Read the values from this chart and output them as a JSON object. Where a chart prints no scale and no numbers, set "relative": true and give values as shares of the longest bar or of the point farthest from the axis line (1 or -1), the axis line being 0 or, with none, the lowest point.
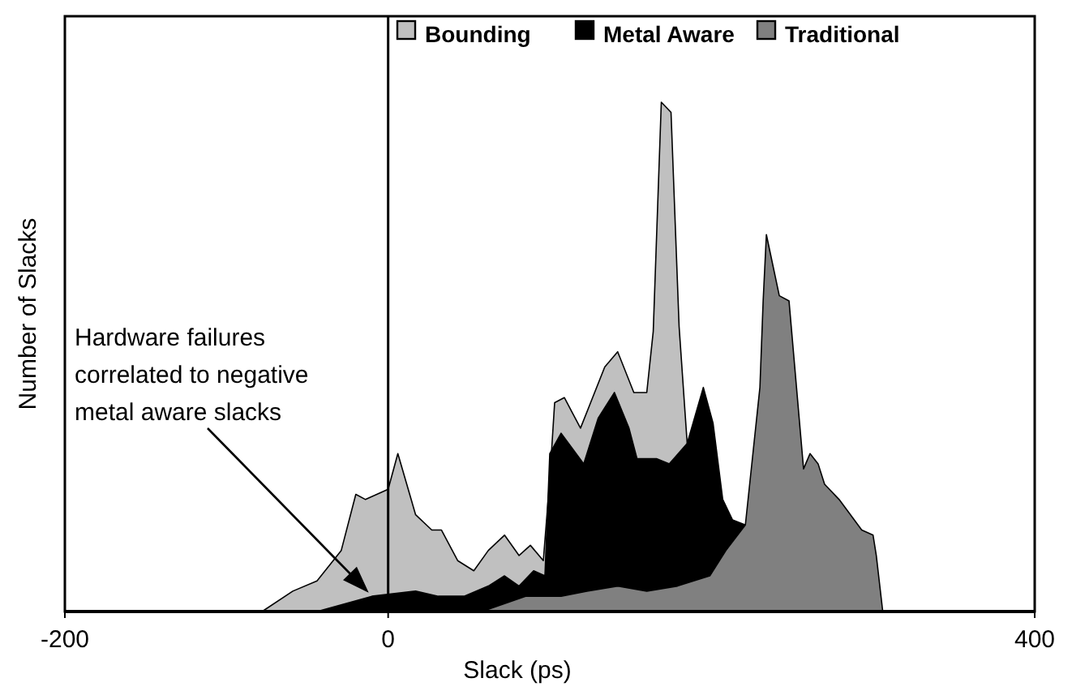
{
  "chart_data": {
    "type": "area",
    "xlabel": "Slack (ps)",
    "ylabel": "Number of Slacks",
    "relative": true,
    "xlim": [
      -200,
      400
    ],
    "xticks": [
      -200,
      0,
      400
    ],
    "legend": "top",
    "grid": false,
    "ref_lines": [
      {
        "axis": "x",
        "value": 0
      }
    ],
    "annotations": [
      "Hardware failures\ncorrelated to negative\nmetal aware slacks"
    ],
    "series": [
      {
        "name": "Bounding",
        "color": "#c0c0c0",
        "x": [
          -110,
          -78,
          -59,
          -44,
          -29,
          -20,
          -14,
          0,
          6,
          17,
          27,
          33,
          43,
          53,
          62,
          72,
          81,
          88,
          96,
          100,
          103,
          109,
          119,
          134,
          142,
          152,
          160,
          164,
          169,
          175,
          180,
          185
        ],
        "values": [
          0,
          0,
          0.04,
          0.06,
          0.12,
          0.23,
          0.22,
          0.24,
          0.31,
          0.19,
          0.16,
          0.16,
          0.1,
          0.08,
          0.12,
          0.15,
          0.11,
          0.13,
          0.1,
          0.26,
          0.41,
          0.42,
          0.36,
          0.48,
          0.51,
          0.43,
          0.43,
          0.55,
          1.0,
          0.98,
          0.56,
          0.33
        ]
      },
      {
        "name": "Metal Aware",
        "color": "#000000",
        "x": [
          -44,
          -10,
          17,
          31,
          47,
          62,
          72,
          81,
          90,
          97,
          100,
          107,
          121,
          130,
          140,
          149,
          154,
          166,
          174,
          185,
          195,
          201,
          207,
          213,
          221
        ],
        "values": [
          0,
          0.03,
          0.04,
          0.03,
          0.03,
          0.05,
          0.07,
          0.05,
          0.08,
          0.07,
          0.31,
          0.35,
          0.29,
          0.38,
          0.43,
          0.36,
          0.3,
          0.3,
          0.29,
          0.33,
          0.44,
          0.37,
          0.22,
          0.18,
          0.17
        ]
      },
      {
        "name": "Traditional",
        "color": "#808080",
        "x": [
          58,
          85,
          107,
          123,
          142,
          160,
          179,
          199,
          209,
          221,
          226,
          230,
          232,
          234,
          238,
          242,
          248,
          257,
          261,
          266,
          270,
          279,
          293,
          300,
          302,
          306
        ],
        "values": [
          0,
          0.03,
          0.03,
          0.04,
          0.05,
          0.04,
          0.05,
          0.07,
          0.12,
          0.17,
          0.32,
          0.44,
          0.61,
          0.74,
          0.68,
          0.62,
          0.61,
          0.28,
          0.31,
          0.29,
          0.25,
          0.22,
          0.16,
          0.15,
          0.11,
          0
        ]
      }
    ]
  }
}
